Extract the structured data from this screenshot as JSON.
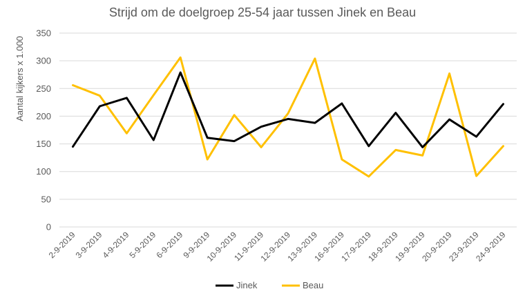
{
  "chart_data": {
    "type": "line",
    "title": "Strijd om de doelgroep 25-54 jaar tussen Jinek en Beau",
    "xlabel": "",
    "ylabel": "Aantal kijkers x 1.000",
    "ylim": [
      0,
      350
    ],
    "yticks": [
      0,
      50,
      100,
      150,
      200,
      250,
      300,
      350
    ],
    "grid": true,
    "legend_position": "bottom",
    "categories": [
      "2-9-2019",
      "3-9-2019",
      "4-9-2019",
      "5-9-2019",
      "6-9-2019",
      "9-9-2019",
      "10-9-2019",
      "11-9-2019",
      "12-9-2019",
      "13-9-2019",
      "16-9-2019",
      "17-9-2019",
      "18-9-2019",
      "19-9-2019",
      "20-9-2019",
      "23-9-2019",
      "24-9-2019"
    ],
    "series": [
      {
        "name": "Jinek",
        "color": "#000000",
        "values": [
          145,
          218,
          233,
          157,
          279,
          161,
          155,
          181,
          195,
          188,
          223,
          146,
          206,
          144,
          194,
          163,
          222
        ]
      },
      {
        "name": "Beau",
        "color": "#FFC000",
        "values": [
          256,
          237,
          169,
          238,
          306,
          122,
          202,
          144,
          205,
          304,
          122,
          91,
          139,
          129,
          277,
          92,
          146
        ]
      }
    ]
  },
  "colors": {
    "grid": "#D9D9D9",
    "text": "#595959"
  }
}
